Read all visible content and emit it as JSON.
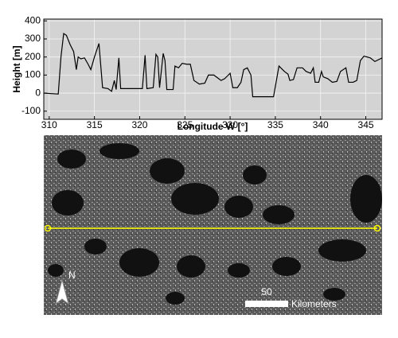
{
  "chart_data": {
    "type": "line",
    "xlabel": "Longitude W [°]",
    "ylabel": "Height [m]",
    "color": "#000000",
    "grid": true,
    "xlim": [
      309.4,
      346.8
    ],
    "xticks": [
      310,
      315,
      320,
      325,
      330,
      335,
      340,
      345
    ],
    "ylim": [
      -145,
      410
    ],
    "yticks": [
      -100,
      0,
      100,
      200,
      300,
      400
    ],
    "x": [
      309.4,
      311,
      311.3,
      311.6,
      311.9,
      312.3,
      312.7,
      313,
      313.2,
      313.5,
      313.9,
      314.3,
      314.6,
      315,
      315.5,
      315.9,
      316.5,
      316.9,
      317.2,
      317.4,
      317.7,
      317.9,
      320.3,
      320.6,
      320.8,
      321.5,
      321.8,
      322,
      322.2,
      322.6,
      322.8,
      323,
      323.7,
      323.9,
      324.3,
      324.7,
      325.2,
      325.6,
      326,
      326.6,
      327.2,
      327.6,
      328.2,
      328.6,
      329,
      329.4,
      329.8,
      330,
      330.3,
      330.8,
      331.2,
      331.5,
      331.9,
      332.3,
      332.5,
      334.8,
      335.4,
      336,
      336.4,
      336.6,
      337,
      337.4,
      338,
      338.4,
      338.9,
      339.2,
      339.4,
      339.8,
      340.1,
      340.3,
      340.8,
      341.3,
      341.8,
      342.2,
      342.8,
      343.1,
      343.6,
      344,
      344.4,
      344.8,
      345.5,
      346,
      346.8
    ],
    "values": [
      0,
      -5,
      200,
      330,
      320,
      270,
      230,
      130,
      200,
      190,
      195,
      160,
      130,
      200,
      275,
      30,
      25,
      10,
      70,
      20,
      195,
      25,
      25,
      210,
      25,
      30,
      215,
      200,
      30,
      220,
      180,
      20,
      20,
      150,
      140,
      165,
      160,
      160,
      70,
      50,
      55,
      100,
      100,
      85,
      70,
      80,
      100,
      110,
      30,
      30,
      60,
      130,
      140,
      100,
      -20,
      -20,
      150,
      120,
      105,
      70,
      75,
      140,
      140,
      120,
      110,
      140,
      60,
      60,
      120,
      90,
      80,
      60,
      65,
      120,
      140,
      60,
      60,
      70,
      180,
      205,
      195,
      175,
      195
    ]
  },
  "image_labels": {
    "north": "N",
    "scale": 50,
    "scale_unit": "Kilometers"
  }
}
